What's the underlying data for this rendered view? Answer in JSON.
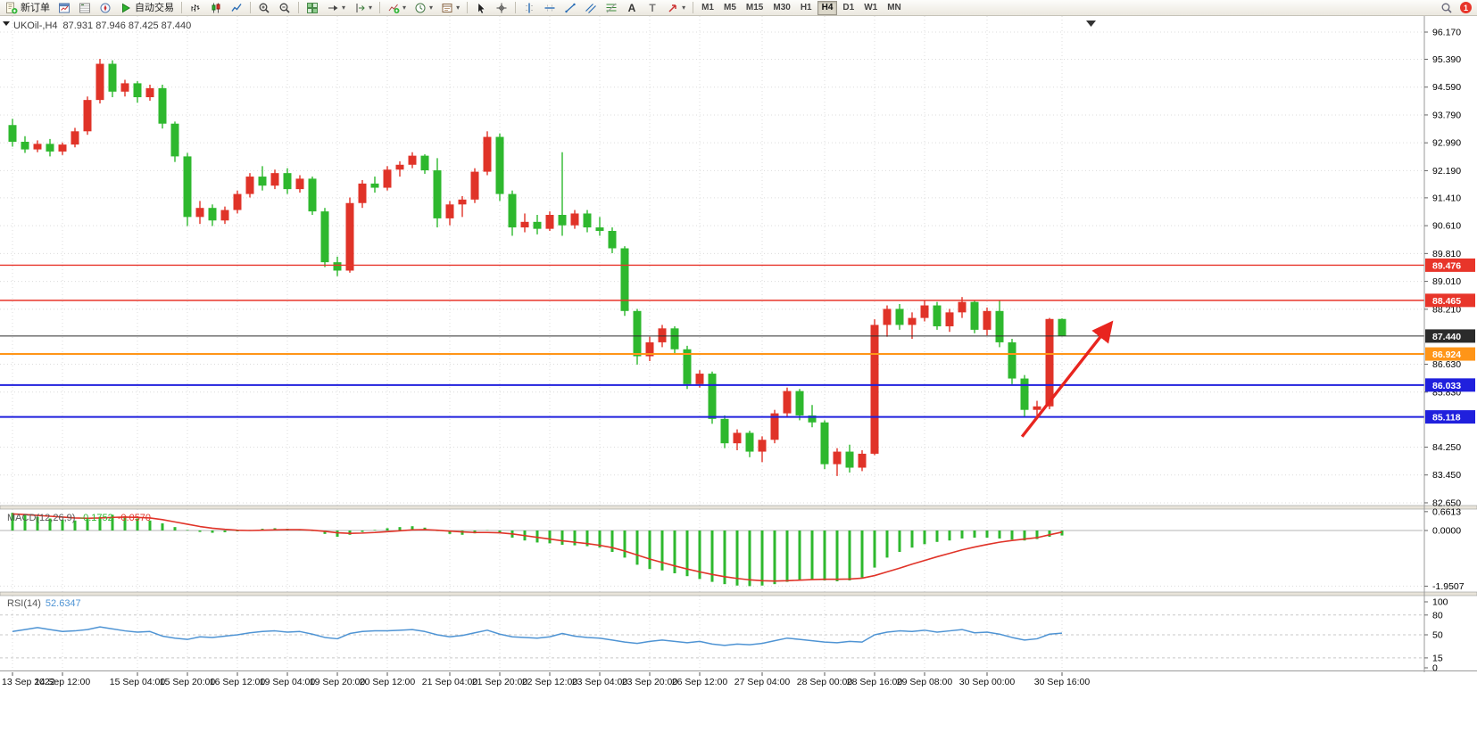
{
  "toolbar": {
    "groups": [
      {
        "items": [
          {
            "name": "new-order-button",
            "icon": "new-order-icon",
            "label": "新订单"
          },
          {
            "name": "chart-window-button",
            "icon": "chart-window-icon",
            "label": ""
          },
          {
            "name": "market-watch-button",
            "icon": "market-watch-icon",
            "label": ""
          },
          {
            "name": "navigator-button",
            "icon": "navigator-icon",
            "label": ""
          },
          {
            "name": "auto-trading-button",
            "icon": "autotrade-icon",
            "label": "自动交易"
          }
        ]
      },
      {
        "items": [
          {
            "name": "bar-chart-button",
            "icon": "bar-chart-icon",
            "label": ""
          },
          {
            "name": "candlestick-button",
            "icon": "candlestick-icon",
            "label": ""
          },
          {
            "name": "line-chart-button",
            "icon": "line-chart-icon",
            "label": ""
          }
        ]
      },
      {
        "items": [
          {
            "name": "zoom-in-button",
            "icon": "zoom-in-icon",
            "label": ""
          },
          {
            "name": "zoom-out-button",
            "icon": "zoom-out-icon",
            "label": ""
          }
        ]
      },
      {
        "items": [
          {
            "name": "tile-windows-button",
            "icon": "tile-windows-icon",
            "label": ""
          },
          {
            "name": "auto-scroll-button",
            "icon": "auto-scroll-icon",
            "label": "",
            "caret": true
          },
          {
            "name": "chart-shift-button",
            "icon": "chart-shift-icon",
            "label": "",
            "caret": true
          }
        ]
      },
      {
        "items": [
          {
            "name": "indicators-button",
            "icon": "indicators-icon",
            "label": "",
            "caret": true
          },
          {
            "name": "periods-button",
            "icon": "periods-icon",
            "label": "",
            "caret": true
          },
          {
            "name": "templates-button",
            "icon": "templates-icon",
            "label": "",
            "caret": true
          }
        ]
      },
      {
        "items": [
          {
            "name": "cursor-button",
            "icon": "cursor-icon",
            "label": ""
          },
          {
            "name": "crosshair-button",
            "icon": "crosshair-icon",
            "label": ""
          }
        ]
      },
      {
        "items": [
          {
            "name": "vertical-line-button",
            "icon": "vertical-line-icon",
            "label": ""
          },
          {
            "name": "horizontal-line-button",
            "icon": "horizontal-line-icon",
            "label": ""
          },
          {
            "name": "trendline-button",
            "icon": "trendline-icon",
            "label": ""
          },
          {
            "name": "channel-button",
            "icon": "channel-icon",
            "label": ""
          },
          {
            "name": "fibonacci-button",
            "icon": "fibonacci-icon",
            "label": ""
          },
          {
            "name": "text-button",
            "icon": "text-icon",
            "label": ""
          },
          {
            "name": "label-button",
            "icon": "label-icon",
            "label": ""
          },
          {
            "name": "arrows-button",
            "icon": "arrows-icon",
            "label": "",
            "caret": true
          }
        ]
      }
    ],
    "timeframes": [
      "M1",
      "M5",
      "M15",
      "M30",
      "H1",
      "H4",
      "D1",
      "W1",
      "MN"
    ],
    "active_timeframe": "H4",
    "text_tool_label": "A",
    "label_tool_label": "T",
    "notification_count": "1"
  },
  "chart": {
    "title": "UKOil-,H4",
    "ohlc_text": "87.931 87.946 87.425 87.440",
    "price_ticks": [
      "96.170",
      "95.390",
      "94.590",
      "93.790",
      "92.990",
      "92.190",
      "91.410",
      "90.610",
      "89.810",
      "89.010",
      "88.210",
      "86.630",
      "85.830",
      "84.250",
      "83.450",
      "82.650"
    ],
    "levels": [
      {
        "label": "89.476",
        "color": "#e8352a",
        "width": 1.4
      },
      {
        "label": "88.465",
        "color": "#e8352a",
        "width": 1.4
      },
      {
        "label": "87.440",
        "color": "#2b2b2b",
        "width": 1
      },
      {
        "label": "86.924",
        "color": "#ff9518",
        "width": 2
      },
      {
        "label": "86.033",
        "color": "#2020dd",
        "width": 2
      },
      {
        "label": "85.118",
        "color": "#2020dd",
        "width": 2
      }
    ],
    "colors": {
      "up": "#e03328",
      "down": "#2eb82e",
      "grid": "#dcdcdc",
      "macd_hist": "#2eb82e",
      "macd_signal": "#e03328",
      "rsi_line": "#4f94d4",
      "arrow": "#e8251f"
    }
  },
  "macd": {
    "name": "MACD(12,26,9)",
    "value_main": "-0.1752",
    "value_signal": "-0.0570",
    "scale": [
      "0.6613",
      "0.0000",
      "-1.9507"
    ]
  },
  "rsi": {
    "name": "RSI(14)",
    "value": "52.6347",
    "scale": [
      "100",
      "80",
      "50",
      "15",
      "0"
    ],
    "levels": [
      80,
      50,
      15
    ]
  },
  "time_axis": [
    {
      "text": "13 Sep 2022",
      "bar": 0
    },
    {
      "text": "14 Sep 12:00",
      "bar": 4
    },
    {
      "text": "15 Sep 04:00",
      "bar": 10
    },
    {
      "text": "15 Sep 20:00",
      "bar": 14
    },
    {
      "text": "16 Sep 12:00",
      "bar": 18
    },
    {
      "text": "19 Sep 04:00",
      "bar": 22
    },
    {
      "text": "19 Sep 20:00",
      "bar": 26
    },
    {
      "text": "20 Sep 12:00",
      "bar": 30
    },
    {
      "text": "21 Sep 04:00",
      "bar": 35
    },
    {
      "text": "21 Sep 20:00",
      "bar": 39
    },
    {
      "text": "22 Sep 12:00",
      "bar": 43
    },
    {
      "text": "23 Sep 04:00",
      "bar": 47
    },
    {
      "text": "23 Sep 20:00",
      "bar": 51
    },
    {
      "text": "26 Sep 12:00",
      "bar": 55
    },
    {
      "text": "27 Sep 04:00",
      "bar": 60
    },
    {
      "text": "28 Sep 00:00",
      "bar": 65
    },
    {
      "text": "28 Sep 16:00",
      "bar": 69
    },
    {
      "text": "29 Sep 08:00",
      "bar": 73
    },
    {
      "text": "30 Sep 00:00",
      "bar": 78
    },
    {
      "text": "30 Sep 16:00",
      "bar": 84
    }
  ],
  "chart_data": {
    "type": "candlestick",
    "symbol": "UKOil-",
    "timeframe": "H4",
    "current_bar_ohlc": {
      "open": 87.931,
      "high": 87.946,
      "low": 87.425,
      "close": 87.44
    },
    "price_range": [
      82.65,
      96.17
    ],
    "up_color_convention": "red-up-green-down",
    "horizontal_levels": [
      89.476,
      88.465,
      87.44,
      86.924,
      86.033,
      85.118
    ],
    "candles_ohlc": [
      [
        93.5,
        93.68,
        92.88,
        93.02
      ],
      [
        93.02,
        93.18,
        92.7,
        92.8
      ],
      [
        92.8,
        93.06,
        92.72,
        92.96
      ],
      [
        92.96,
        93.1,
        92.6,
        92.74
      ],
      [
        92.74,
        93.0,
        92.64,
        92.94
      ],
      [
        92.94,
        93.42,
        92.86,
        93.32
      ],
      [
        93.32,
        94.32,
        93.22,
        94.22
      ],
      [
        94.22,
        95.4,
        94.12,
        95.26
      ],
      [
        95.26,
        95.36,
        94.3,
        94.46
      ],
      [
        94.46,
        94.8,
        94.32,
        94.7
      ],
      [
        94.7,
        94.76,
        94.14,
        94.3
      ],
      [
        94.3,
        94.66,
        94.2,
        94.56
      ],
      [
        94.56,
        94.66,
        93.4,
        93.54
      ],
      [
        93.54,
        93.6,
        92.44,
        92.6
      ],
      [
        92.6,
        92.7,
        90.6,
        90.86
      ],
      [
        90.86,
        91.32,
        90.66,
        91.12
      ],
      [
        91.12,
        91.22,
        90.6,
        90.76
      ],
      [
        90.76,
        91.16,
        90.66,
        91.06
      ],
      [
        91.06,
        91.62,
        90.96,
        91.52
      ],
      [
        91.52,
        92.12,
        91.42,
        92.02
      ],
      [
        92.02,
        92.32,
        91.62,
        91.76
      ],
      [
        91.76,
        92.22,
        91.66,
        92.12
      ],
      [
        92.12,
        92.26,
        91.52,
        91.66
      ],
      [
        91.66,
        92.06,
        91.56,
        91.96
      ],
      [
        91.96,
        92.02,
        90.92,
        91.02
      ],
      [
        91.02,
        91.12,
        89.42,
        89.56
      ],
      [
        89.56,
        89.72,
        89.16,
        89.32
      ],
      [
        89.32,
        91.42,
        89.26,
        91.26
      ],
      [
        91.26,
        91.92,
        91.12,
        91.82
      ],
      [
        91.82,
        92.02,
        91.56,
        91.7
      ],
      [
        91.7,
        92.32,
        91.62,
        92.22
      ],
      [
        92.22,
        92.46,
        92.02,
        92.36
      ],
      [
        92.36,
        92.72,
        92.26,
        92.62
      ],
      [
        92.62,
        92.66,
        92.1,
        92.2
      ],
      [
        92.2,
        92.55,
        90.56,
        90.82
      ],
      [
        90.82,
        91.32,
        90.62,
        91.22
      ],
      [
        91.22,
        91.46,
        90.86,
        91.36
      ],
      [
        91.36,
        92.26,
        91.26,
        92.16
      ],
      [
        92.16,
        93.32,
        92.06,
        93.16
      ],
      [
        93.16,
        93.26,
        91.32,
        91.52
      ],
      [
        91.52,
        91.62,
        90.32,
        90.56
      ],
      [
        90.56,
        90.96,
        90.42,
        90.72
      ],
      [
        90.72,
        90.92,
        90.36,
        90.52
      ],
      [
        90.52,
        91.02,
        90.46,
        90.92
      ],
      [
        90.92,
        92.72,
        90.32,
        90.62
      ],
      [
        90.62,
        91.06,
        90.52,
        90.96
      ],
      [
        90.96,
        91.06,
        90.42,
        90.56
      ],
      [
        90.56,
        90.86,
        90.32,
        90.46
      ],
      [
        90.46,
        90.56,
        89.82,
        89.96
      ],
      [
        89.96,
        90.02,
        88.02,
        88.16
      ],
      [
        88.16,
        88.22,
        86.62,
        86.86
      ],
      [
        86.86,
        87.42,
        86.72,
        87.26
      ],
      [
        87.26,
        87.76,
        87.12,
        87.66
      ],
      [
        87.66,
        87.72,
        86.92,
        87.06
      ],
      [
        87.06,
        87.16,
        85.92,
        86.06
      ],
      [
        86.06,
        86.46,
        85.96,
        86.36
      ],
      [
        86.36,
        86.42,
        84.92,
        85.06
      ],
      [
        85.06,
        85.16,
        84.22,
        84.36
      ],
      [
        84.36,
        84.76,
        84.16,
        84.66
      ],
      [
        84.66,
        84.72,
        83.96,
        84.12
      ],
      [
        84.12,
        84.56,
        83.82,
        84.46
      ],
      [
        84.46,
        85.32,
        84.36,
        85.22
      ],
      [
        85.22,
        85.96,
        85.12,
        85.86
      ],
      [
        85.86,
        85.92,
        85.02,
        85.16
      ],
      [
        85.16,
        85.46,
        84.82,
        84.96
      ],
      [
        84.96,
        85.02,
        83.62,
        83.76
      ],
      [
        83.76,
        84.22,
        83.42,
        84.12
      ],
      [
        84.12,
        84.32,
        83.52,
        83.66
      ],
      [
        83.66,
        84.16,
        83.56,
        84.06
      ],
      [
        84.06,
        87.92,
        84.02,
        87.76
      ],
      [
        87.76,
        88.32,
        87.42,
        88.22
      ],
      [
        88.22,
        88.36,
        87.62,
        87.76
      ],
      [
        87.76,
        88.12,
        87.36,
        87.96
      ],
      [
        87.96,
        88.46,
        87.86,
        88.32
      ],
      [
        88.32,
        88.42,
        87.62,
        87.72
      ],
      [
        87.72,
        88.22,
        87.56,
        88.12
      ],
      [
        88.12,
        88.56,
        87.96,
        88.42
      ],
      [
        88.42,
        88.46,
        87.52,
        87.62
      ],
      [
        87.62,
        88.26,
        87.46,
        88.16
      ],
      [
        88.16,
        88.46,
        87.12,
        87.26
      ],
      [
        87.26,
        87.36,
        86.06,
        86.22
      ],
      [
        86.22,
        86.32,
        85.1,
        85.32
      ],
      [
        85.32,
        85.58,
        85.06,
        85.42
      ],
      [
        85.42,
        87.96,
        85.34,
        87.93
      ],
      [
        87.931,
        87.946,
        87.425,
        87.44
      ]
    ],
    "indicators": {
      "macd": {
        "params": "12,26,9",
        "range": [
          -1.9507,
          0.6613
        ],
        "histogram": [
          0.62,
          0.55,
          0.48,
          0.42,
          0.38,
          0.35,
          0.4,
          0.48,
          0.55,
          0.5,
          0.42,
          0.35,
          0.25,
          0.12,
          0.02,
          -0.05,
          -0.08,
          -0.06,
          -0.03,
          0.02,
          0.06,
          0.08,
          0.06,
          0.04,
          -0.02,
          -0.12,
          -0.22,
          -0.15,
          -0.05,
          0.02,
          0.08,
          0.12,
          0.15,
          0.1,
          -0.02,
          -0.12,
          -0.15,
          -0.1,
          0.0,
          -0.08,
          -0.25,
          -0.35,
          -0.42,
          -0.45,
          -0.5,
          -0.52,
          -0.55,
          -0.6,
          -0.75,
          -0.95,
          -1.2,
          -1.35,
          -1.4,
          -1.5,
          -1.6,
          -1.7,
          -1.8,
          -1.88,
          -1.93,
          -1.95,
          -1.93,
          -1.88,
          -1.8,
          -1.75,
          -1.72,
          -1.75,
          -1.78,
          -1.75,
          -1.65,
          -1.3,
          -0.95,
          -0.75,
          -0.6,
          -0.48,
          -0.4,
          -0.35,
          -0.28,
          -0.25,
          -0.25,
          -0.28,
          -0.32,
          -0.35,
          -0.3,
          -0.22,
          -0.1752
        ],
        "signal": [
          0.58,
          0.56,
          0.53,
          0.5,
          0.47,
          0.44,
          0.43,
          0.44,
          0.46,
          0.47,
          0.46,
          0.44,
          0.38,
          0.3,
          0.22,
          0.14,
          0.08,
          0.04,
          0.01,
          0.0,
          0.01,
          0.02,
          0.03,
          0.03,
          0.01,
          -0.03,
          -0.08,
          -0.1,
          -0.09,
          -0.07,
          -0.04,
          -0.01,
          0.02,
          0.03,
          0.01,
          -0.02,
          -0.05,
          -0.07,
          -0.07,
          -0.08,
          -0.12,
          -0.18,
          -0.24,
          -0.3,
          -0.36,
          -0.41,
          -0.46,
          -0.52,
          -0.6,
          -0.72,
          -0.86,
          -1.0,
          -1.12,
          -1.24,
          -1.35,
          -1.45,
          -1.54,
          -1.62,
          -1.68,
          -1.73,
          -1.76,
          -1.77,
          -1.76,
          -1.74,
          -1.72,
          -1.71,
          -1.71,
          -1.7,
          -1.67,
          -1.58,
          -1.45,
          -1.32,
          -1.18,
          -1.05,
          -0.92,
          -0.8,
          -0.68,
          -0.58,
          -0.49,
          -0.41,
          -0.35,
          -0.3,
          -0.25,
          -0.15,
          -0.057
        ]
      },
      "rsi": {
        "period": 14,
        "last": 52.6347,
        "values": [
          55,
          58,
          61,
          58,
          55,
          56,
          58,
          62,
          59,
          56,
          54,
          55,
          48,
          45,
          43,
          47,
          46,
          48,
          50,
          53,
          55,
          56,
          54,
          55,
          51,
          46,
          44,
          52,
          55,
          56,
          56,
          57,
          58,
          55,
          50,
          47,
          49,
          53,
          57,
          51,
          47,
          46,
          45,
          47,
          52,
          48,
          46,
          45,
          42,
          39,
          37,
          40,
          42,
          40,
          38,
          40,
          36,
          34,
          36,
          35,
          37,
          41,
          45,
          43,
          41,
          39,
          38,
          40,
          39,
          50,
          54,
          56,
          55,
          57,
          54,
          56,
          58,
          53,
          54,
          51,
          46,
          42,
          44,
          51,
          52.6
        ]
      }
    },
    "annotation_arrow": {
      "from_bar": 80.8,
      "from_price": 84.55,
      "to_bar": 87.8,
      "to_price": 87.75,
      "color": "#e8251f"
    }
  }
}
